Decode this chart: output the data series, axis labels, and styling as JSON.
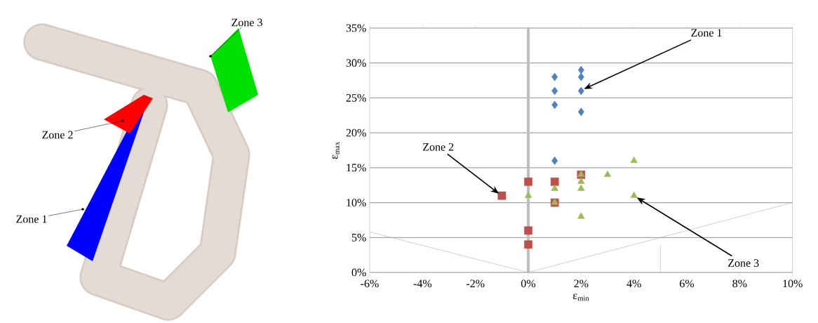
{
  "chart_data": {
    "type": "scatter",
    "xlabel": "ε$_{min}$",
    "ylabel": "ε$_{max}$",
    "xlim": [
      -6,
      10
    ],
    "ylim": [
      0,
      35
    ],
    "xticks": [
      {
        "value": -6,
        "label": "-6%"
      },
      {
        "value": -4,
        "label": "-4%"
      },
      {
        "value": -2,
        "label": "-2%"
      },
      {
        "value": 0,
        "label": "0%"
      },
      {
        "value": 2,
        "label": "2%"
      },
      {
        "value": 4,
        "label": "4%"
      },
      {
        "value": 6,
        "label": "6%"
      },
      {
        "value": 8,
        "label": "8%"
      },
      {
        "value": 10,
        "label": "10%"
      }
    ],
    "yticks": [
      {
        "value": 0,
        "label": "0%"
      },
      {
        "value": 5,
        "label": "5%"
      },
      {
        "value": 10,
        "label": "10%"
      },
      {
        "value": 15,
        "label": "15%"
      },
      {
        "value": 20,
        "label": "20%"
      },
      {
        "value": 25,
        "label": "25%"
      },
      {
        "value": 30,
        "label": "30%"
      },
      {
        "value": 35,
        "label": "35%"
      }
    ],
    "grid": "y",
    "ref_lines": [
      {
        "axis": "x",
        "value": 0,
        "color": "#bfbfbf"
      }
    ],
    "series": [
      {
        "color": "#4f81bd",
        "marker": "diamond",
        "x": [
          1,
          1,
          1,
          1,
          2,
          2,
          2,
          2
        ],
        "values": [
          28,
          26,
          24,
          16,
          29,
          28,
          26,
          23
        ]
      },
      {
        "color": "#c0504d",
        "marker": "square",
        "x": [
          -1,
          0,
          0,
          0,
          1,
          1,
          2
        ],
        "values": [
          11,
          13,
          6,
          4,
          13,
          10,
          14
        ]
      },
      {
        "color": "#9bbb59",
        "marker": "triangle",
        "x": [
          0,
          1,
          1,
          2,
          2,
          2,
          2,
          3,
          4,
          4
        ],
        "values": [
          11,
          12,
          10,
          14,
          13,
          12,
          8,
          14,
          16,
          11
        ]
      },
      {
        "type": "line",
        "color": "#a6a6a6",
        "marker": "none",
        "x": [
          -6,
          0,
          10
        ],
        "values": [
          5.8,
          0,
          10
        ]
      },
      {
        "type": "line",
        "color": "#a6a6a6",
        "marker": "none",
        "x": [
          5,
          5
        ],
        "values": [
          0,
          3.8
        ]
      }
    ],
    "annotations": [
      "Zone 1",
      "Zone 2",
      "Zone 3",
      "Zone 3",
      "Zone 2",
      "Zone 1"
    ]
  }
}
